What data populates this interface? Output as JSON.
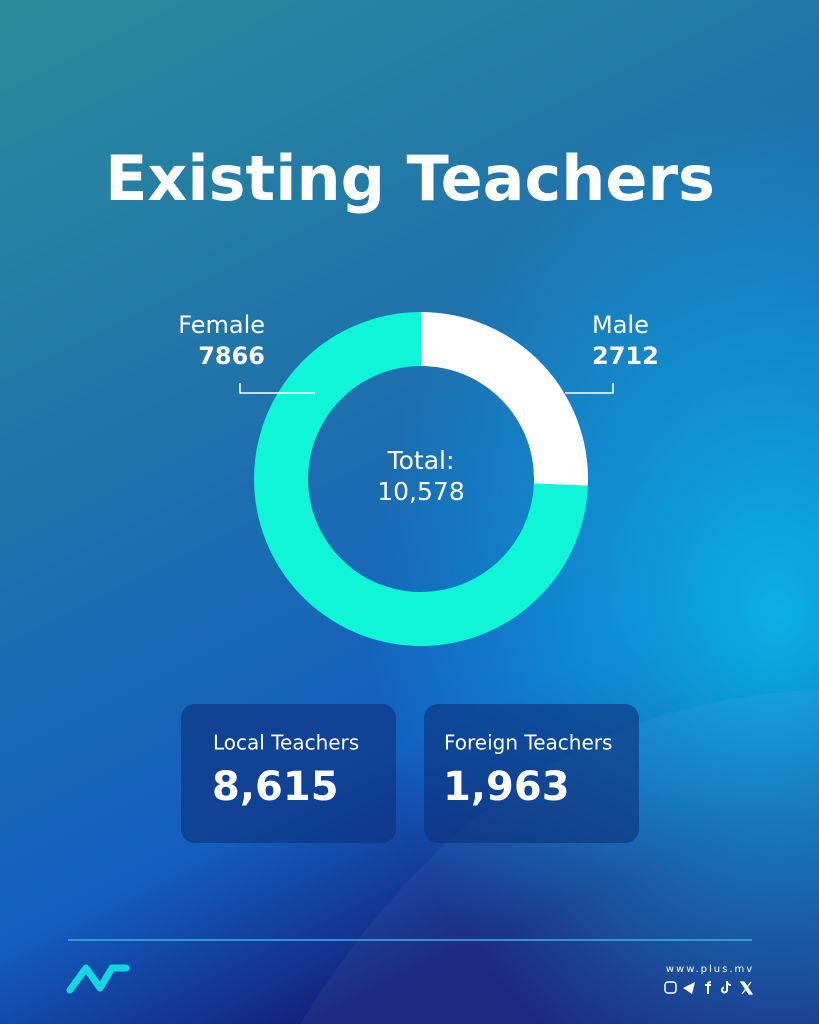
{
  "chart_data": {
    "type": "pie",
    "donut": true,
    "title": "Existing Teachers",
    "categories": [
      "Male",
      "Female"
    ],
    "values": [
      2712,
      7866
    ],
    "colors": [
      "#ffffff",
      "#0ff5d8"
    ],
    "center_label": "Total:",
    "center_value": "10,578"
  },
  "cards": [
    {
      "label": "Local Teachers",
      "value": "8,615"
    },
    {
      "label": "Foreign Teachers",
      "value": "1,963"
    }
  ],
  "footer": {
    "website": "www.plus.mv"
  }
}
